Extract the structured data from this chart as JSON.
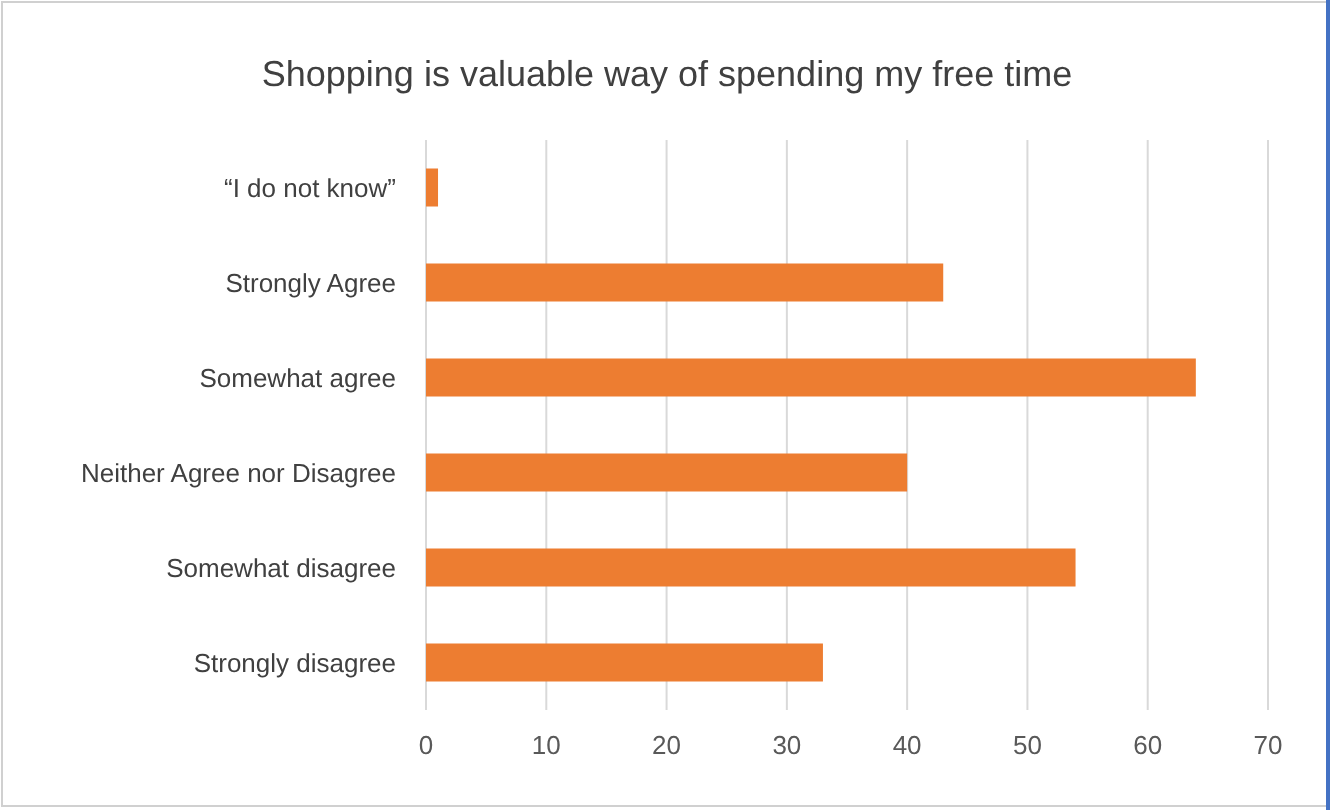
{
  "chart_data": {
    "type": "bar",
    "orientation": "horizontal",
    "title": "Shopping is valuable way of spending my free time",
    "categories": [
      "“I do not know”",
      "Strongly Agree",
      "Somewhat agree",
      "Neither Agree nor Disagree",
      "Somewhat disagree",
      "Strongly disagree"
    ],
    "values": [
      1,
      43,
      64,
      40,
      54,
      33
    ],
    "color": "#ed7d31",
    "xlim": [
      0,
      70
    ],
    "xticks": [
      0,
      10,
      20,
      30,
      40,
      50,
      60,
      70
    ],
    "grid": "x"
  }
}
